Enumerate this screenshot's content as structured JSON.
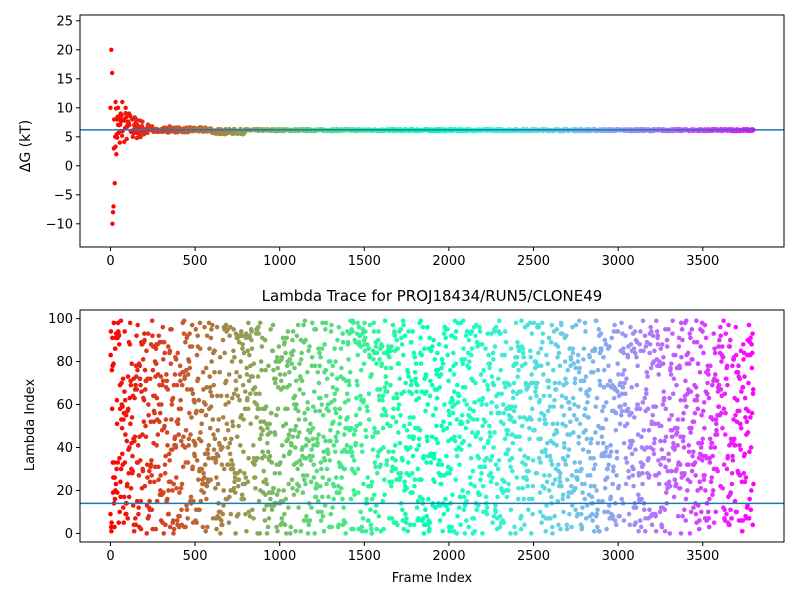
{
  "chart_data": [
    {
      "type": "scatter",
      "title": "",
      "xlabel": "",
      "ylabel": "ΔG (kT)",
      "xlim": [
        -180,
        3980
      ],
      "ylim": [
        -14,
        26
      ],
      "xticks": [
        0,
        500,
        1000,
        1500,
        2000,
        2500,
        3000,
        3500
      ],
      "yticks": [
        -10,
        -5,
        0,
        5,
        10,
        15,
        20,
        25
      ],
      "hline": 6.2,
      "colormap": "rainbow (red at frame 0 to violet at last frame)",
      "series": [
        {
          "x": [
            0,
            5,
            10,
            12,
            15,
            18,
            20,
            22,
            25,
            28,
            30,
            35,
            40,
            45,
            50,
            55,
            60,
            65,
            70,
            80,
            90,
            100,
            110,
            120,
            130,
            140,
            150,
            160,
            170,
            180,
            200,
            220,
            250,
            300,
            350,
            400,
            450,
            500,
            600,
            700,
            800,
            1000,
            1200,
            1500,
            2000,
            2500,
            3000,
            3500,
            3800
          ],
          "y": [
            10,
            20,
            16,
            -10,
            -8,
            -7,
            3,
            8,
            -3,
            5,
            11,
            2,
            8,
            10,
            7,
            4,
            9,
            6,
            11,
            8,
            10,
            7,
            9,
            6,
            8,
            7,
            6,
            7,
            6.5,
            6,
            5.5,
            6.5,
            6,
            6,
            6.8,
            6.5,
            6.3,
            6.2,
            6,
            5.8,
            6,
            6.1,
            6.2,
            6.1,
            6.2,
            6.2,
            6.3,
            6.2,
            6.2
          ]
        }
      ]
    },
    {
      "type": "scatter",
      "title": "Lambda Trace for PROJ18434/RUN5/CLONE49",
      "xlabel": "Frame Index",
      "ylabel": "Lambda Index",
      "xlim": [
        -180,
        3980
      ],
      "ylim": [
        -4,
        104
      ],
      "xticks": [
        0,
        500,
        1000,
        1500,
        2000,
        2500,
        3000,
        3500
      ],
      "yticks": [
        0,
        20,
        40,
        60,
        80,
        100
      ],
      "hline": 14,
      "n_points": 3800,
      "colormap": "rainbow (red at frame 0 to violet at last frame)"
    }
  ]
}
